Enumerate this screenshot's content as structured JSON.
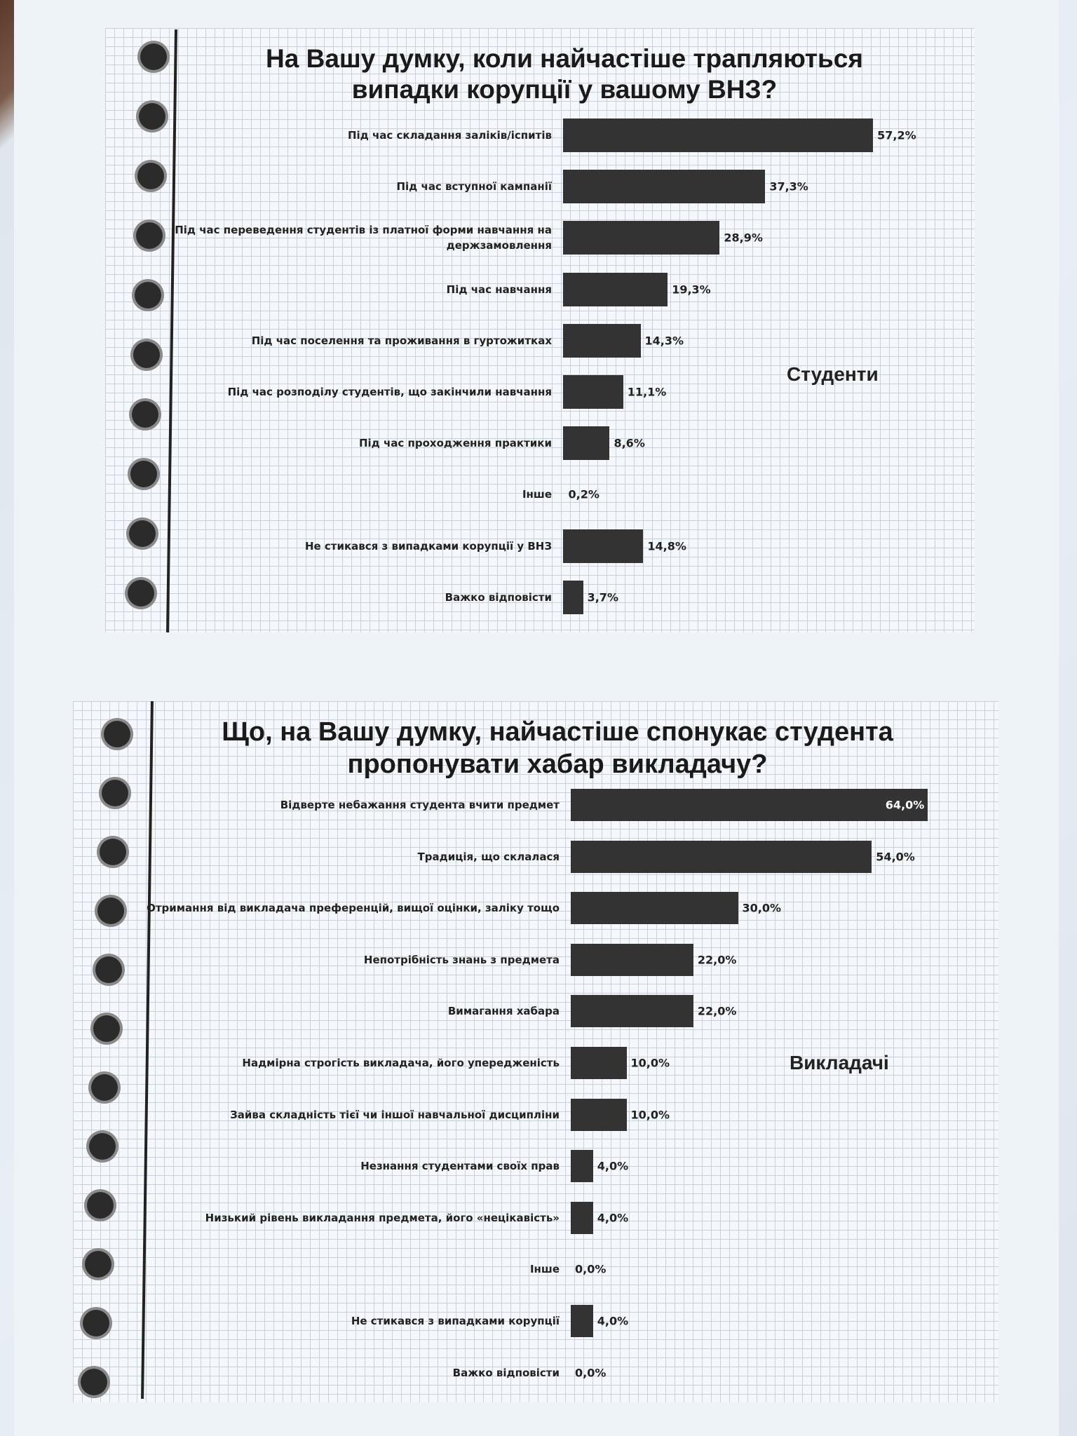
{
  "chart_data": [
    {
      "type": "bar",
      "orientation": "horizontal",
      "title": "На Вашу думку, коли найчастіше трапляються випадки корупції у вашому ВНЗ?",
      "title_lines": [
        "На Вашу думку, коли найчастіше трапляються",
        "випадки корупції у вашому ВНЗ?"
      ],
      "group_label": "Студенти",
      "categories": [
        "Під час складання заліків/іспитів",
        "Під час вступної кампанії",
        "Під час переведення студентів із платної форми навчання на держзамовлення",
        "Під час навчання",
        "Під час поселення та проживання в гуртожитках",
        "Під час розподілу студентів, що закінчили навчання",
        "Під час проходження практики",
        "Інше",
        "Не стикався з випадками корупції у ВНЗ",
        "Важко відповісти"
      ],
      "values": [
        57.2,
        37.3,
        28.9,
        19.3,
        14.3,
        11.1,
        8.6,
        0.2,
        14.8,
        3.7
      ],
      "value_labels": [
        "57,2%",
        "37,3%",
        "28,9%",
        "19,3%",
        "14,3%",
        "11,1%",
        "8,6%",
        "0,2%",
        "14,8%",
        "3,7%"
      ],
      "xlabel": "",
      "ylabel": "",
      "xlim": [
        0,
        60
      ],
      "grid": false
    },
    {
      "type": "bar",
      "orientation": "horizontal",
      "title": "Що, на Вашу думку, найчастіше спонукає студента пропонувати хабар викладачу?",
      "title_lines": [
        "Що, на Вашу думку, найчастіше спонукає студента",
        "пропонувати хабар викладачу?"
      ],
      "group_label": "Викладачі",
      "categories": [
        "Відверте небажання студента вчити предмет",
        "Традиція, що склалася",
        "Отримання від викладача преференцій, вищої оцінки, заліку тощо",
        "Непотрібність знань з предмета",
        "Вимагання хабара",
        "Надмірна строгість викладача,  його упередженість",
        "Зайва складність тієї чи іншої навчальної дисципліни",
        "Незнання студентами своїх прав",
        "Низький рівень викладання предмета, його «нецікавість»",
        "Інше",
        "Не стикався з випадками корупції",
        "Важко відповісти"
      ],
      "values": [
        64.0,
        54.0,
        30.0,
        22.0,
        22.0,
        10.0,
        10.0,
        4.0,
        4.0,
        0.0,
        4.0,
        0.0
      ],
      "value_labels": [
        "64,0%",
        "54,0%",
        "30,0%",
        "22,0%",
        "22,0%",
        "10,0%",
        "10,0%",
        "4,0%",
        "4,0%",
        "0,0%",
        "4,0%",
        "0,0%"
      ],
      "xlabel": "",
      "ylabel": "",
      "xlim": [
        0,
        65
      ],
      "grid": false
    }
  ],
  "colors": {
    "bar": "#333333",
    "label_inside": "#ffffff"
  }
}
